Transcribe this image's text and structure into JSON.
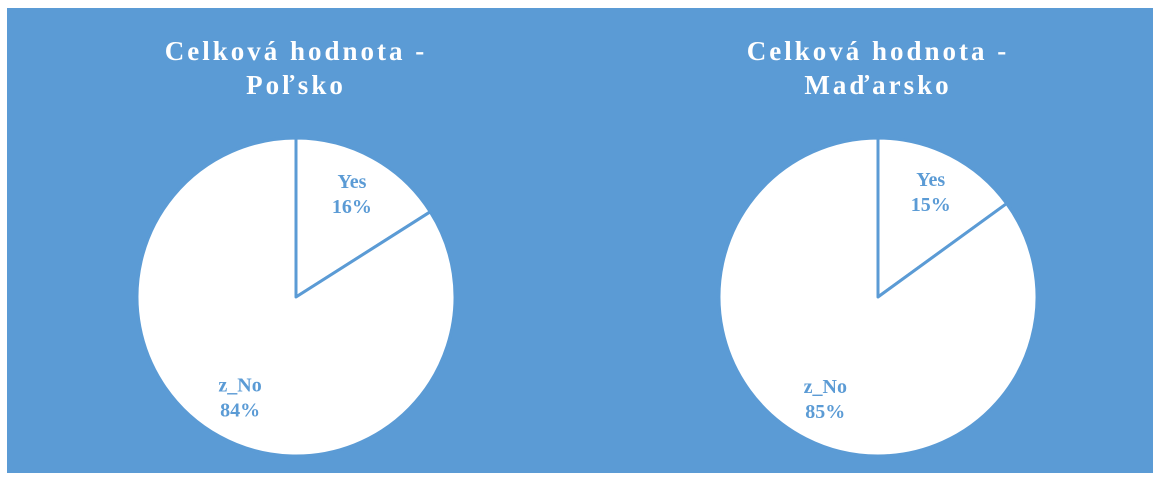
{
  "chart_data": [
    {
      "type": "pie",
      "title": "Celková hodnota - Poľsko",
      "categories": [
        "Yes",
        "z_No"
      ],
      "values": [
        16,
        84
      ],
      "value_labels": [
        "16%",
        "84%"
      ],
      "color": "#ffffff"
    },
    {
      "type": "pie",
      "title": "Celková hodnota - Maďarsko",
      "categories": [
        "Yes",
        "z_No"
      ],
      "values": [
        15,
        85
      ],
      "value_labels": [
        "15%",
        "85%"
      ],
      "color": "#ffffff"
    }
  ]
}
